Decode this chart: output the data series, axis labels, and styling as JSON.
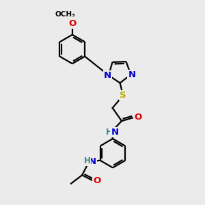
{
  "background_color": "#ebebeb",
  "atom_colors": {
    "C": "#000000",
    "N": "#0000cc",
    "O": "#dd0000",
    "S": "#bbaa00",
    "H": "#3a8a8a"
  },
  "bond_color": "#000000",
  "bond_width": 1.6,
  "font_size": 9.5
}
